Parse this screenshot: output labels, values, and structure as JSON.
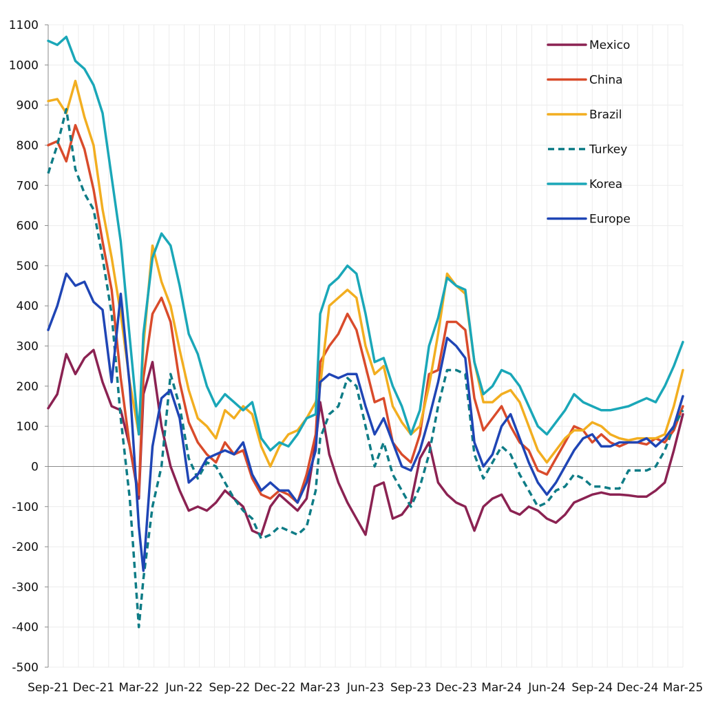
{
  "chart_data": {
    "type": "line",
    "title": "",
    "xlabel": "",
    "ylabel": "",
    "ylim": [
      -500,
      1100
    ],
    "yticks": [
      -500,
      -400,
      -300,
      -200,
      -100,
      0,
      100,
      200,
      300,
      400,
      500,
      600,
      700,
      800,
      900,
      1000,
      1100
    ],
    "ytick_labels": [
      "-500",
      "-400",
      "-300",
      "-200",
      "-100",
      "0",
      "100",
      "200",
      "300",
      "400",
      "500",
      "600",
      "700",
      "800",
      "900",
      "1000",
      "1100"
    ],
    "xtick_labels": [
      "Sep-21",
      "Dec-21",
      "Mar-22",
      "Jun-22",
      "Sep-22",
      "Dec-22",
      "Mar-23",
      "Jun-23",
      "Sep-23",
      "Dec-23",
      "Mar-24",
      "Jun-24",
      "Sep-24",
      "Dec-24",
      "Mar-25"
    ],
    "x_unit": "quarters since Sep-21",
    "xlim": [
      0,
      14
    ],
    "grid": true,
    "legend_position": "top-right",
    "series": [
      {
        "name": "Mexico",
        "color": "#8B2252",
        "dash": false,
        "x": [
          0,
          0.2,
          0.4,
          0.6,
          0.8,
          1.0,
          1.2,
          1.4,
          1.6,
          1.8,
          2.0,
          2.1,
          2.3,
          2.5,
          2.7,
          2.9,
          3.1,
          3.3,
          3.5,
          3.7,
          3.9,
          4.1,
          4.3,
          4.5,
          4.7,
          4.9,
          5.1,
          5.3,
          5.5,
          5.7,
          5.9,
          6.0,
          6.2,
          6.4,
          6.6,
          6.8,
          7.0,
          7.2,
          7.4,
          7.6,
          7.8,
          8.0,
          8.2,
          8.4,
          8.6,
          8.8,
          9.0,
          9.2,
          9.4,
          9.6,
          9.8,
          10.0,
          10.2,
          10.4,
          10.6,
          10.8,
          11.0,
          11.2,
          11.4,
          11.6,
          11.8,
          12.0,
          12.2,
          12.4,
          12.6,
          12.8,
          13.0,
          13.2,
          13.4,
          13.6,
          13.8,
          14.0
        ],
        "values": [
          145,
          180,
          280,
          230,
          270,
          290,
          210,
          150,
          140,
          50,
          -80,
          180,
          260,
          100,
          0,
          -60,
          -110,
          -100,
          -110,
          -90,
          -60,
          -80,
          -100,
          -160,
          -170,
          -100,
          -70,
          -90,
          -110,
          -80,
          60,
          160,
          30,
          -40,
          -90,
          -130,
          -170,
          -50,
          -40,
          -130,
          -120,
          -90,
          20,
          60,
          -40,
          -70,
          -90,
          -100,
          -160,
          -100,
          -80,
          -70,
          -110,
          -120,
          -100,
          -110,
          -130,
          -140,
          -120,
          -90,
          -80,
          -70,
          -65,
          -70,
          -70,
          -72,
          -75,
          -75,
          -60,
          -40,
          40,
          130
        ]
      },
      {
        "name": "China",
        "color": "#D94B2B",
        "dash": false,
        "x": [
          0,
          0.2,
          0.4,
          0.6,
          0.8,
          1.0,
          1.2,
          1.4,
          1.6,
          1.8,
          2.0,
          2.1,
          2.3,
          2.5,
          2.7,
          2.9,
          3.1,
          3.3,
          3.5,
          3.7,
          3.9,
          4.1,
          4.3,
          4.5,
          4.7,
          4.9,
          5.1,
          5.3,
          5.5,
          5.7,
          5.9,
          6.0,
          6.2,
          6.4,
          6.6,
          6.8,
          7.0,
          7.2,
          7.4,
          7.6,
          7.8,
          8.0,
          8.2,
          8.4,
          8.6,
          8.8,
          9.0,
          9.2,
          9.4,
          9.6,
          9.8,
          10.0,
          10.2,
          10.4,
          10.6,
          10.8,
          11.0,
          11.2,
          11.4,
          11.6,
          11.8,
          12.0,
          12.2,
          12.4,
          12.6,
          12.8,
          13.0,
          13.2,
          13.4,
          13.6,
          13.8,
          14.0
        ],
        "values": [
          800,
          810,
          760,
          850,
          790,
          690,
          560,
          440,
          220,
          50,
          -70,
          220,
          380,
          420,
          360,
          210,
          110,
          60,
          30,
          10,
          60,
          30,
          40,
          -30,
          -70,
          -80,
          -60,
          -70,
          -90,
          -20,
          80,
          260,
          300,
          330,
          380,
          340,
          250,
          160,
          170,
          60,
          30,
          10,
          80,
          230,
          240,
          360,
          360,
          340,
          170,
          90,
          120,
          150,
          100,
          60,
          40,
          -10,
          -20,
          20,
          60,
          100,
          90,
          60,
          80,
          60,
          50,
          60,
          60,
          55,
          70,
          60,
          90,
          150
        ]
      },
      {
        "name": "Brazil",
        "color": "#F2AE20",
        "dash": false,
        "x": [
          0,
          0.2,
          0.4,
          0.6,
          0.8,
          1.0,
          1.2,
          1.4,
          1.6,
          1.8,
          2.0,
          2.1,
          2.3,
          2.5,
          2.7,
          2.9,
          3.1,
          3.3,
          3.5,
          3.7,
          3.9,
          4.1,
          4.3,
          4.5,
          4.7,
          4.9,
          5.1,
          5.3,
          5.5,
          5.7,
          5.9,
          6.0,
          6.2,
          6.4,
          6.6,
          6.8,
          7.0,
          7.2,
          7.4,
          7.6,
          7.8,
          8.0,
          8.2,
          8.4,
          8.6,
          8.8,
          9.0,
          9.2,
          9.4,
          9.6,
          9.8,
          10.0,
          10.2,
          10.4,
          10.6,
          10.8,
          11.0,
          11.2,
          11.4,
          11.6,
          11.8,
          12.0,
          12.2,
          12.4,
          12.6,
          12.8,
          13.0,
          13.2,
          13.4,
          13.6,
          13.8,
          14.0
        ],
        "values": [
          910,
          915,
          880,
          960,
          870,
          800,
          640,
          520,
          380,
          210,
          80,
          300,
          550,
          460,
          400,
          290,
          190,
          120,
          100,
          70,
          140,
          120,
          150,
          130,
          50,
          0,
          50,
          80,
          90,
          120,
          160,
          200,
          400,
          420,
          440,
          420,
          300,
          230,
          250,
          150,
          110,
          80,
          100,
          200,
          330,
          480,
          450,
          430,
          260,
          160,
          160,
          180,
          190,
          160,
          100,
          40,
          10,
          40,
          70,
          90,
          90,
          110,
          100,
          80,
          70,
          65,
          70,
          70,
          70,
          80,
          150,
          240
        ]
      },
      {
        "name": "Turkey",
        "color": "#0E7C86",
        "dash": true,
        "x": [
          0,
          0.2,
          0.4,
          0.6,
          0.8,
          1.0,
          1.2,
          1.4,
          1.6,
          1.8,
          2.0,
          2.1,
          2.3,
          2.5,
          2.7,
          2.9,
          3.1,
          3.3,
          3.5,
          3.7,
          3.9,
          4.1,
          4.3,
          4.5,
          4.7,
          4.9,
          5.1,
          5.3,
          5.5,
          5.7,
          5.9,
          6.0,
          6.2,
          6.4,
          6.6,
          6.8,
          7.0,
          7.2,
          7.4,
          7.6,
          7.8,
          8.0,
          8.2,
          8.4,
          8.6,
          8.8,
          9.0,
          9.2,
          9.4,
          9.6,
          9.8,
          10.0,
          10.2,
          10.4,
          10.6,
          10.8,
          11.0,
          11.2,
          11.4,
          11.6,
          11.8,
          12.0,
          12.2,
          12.4,
          12.6,
          12.8,
          13.0,
          13.2,
          13.4,
          13.6,
          13.8,
          14.0
        ],
        "values": [
          730,
          800,
          890,
          740,
          680,
          640,
          520,
          380,
          120,
          -80,
          -400,
          -280,
          -100,
          0,
          230,
          150,
          20,
          -30,
          10,
          0,
          -40,
          -80,
          -110,
          -130,
          -180,
          -170,
          -150,
          -160,
          -170,
          -150,
          -60,
          70,
          130,
          150,
          220,
          200,
          100,
          0,
          60,
          -20,
          -60,
          -100,
          -50,
          30,
          150,
          240,
          240,
          230,
          30,
          -30,
          10,
          50,
          30,
          -20,
          -60,
          -100,
          -90,
          -60,
          -50,
          -20,
          -30,
          -50,
          -50,
          -55,
          -55,
          -10,
          -10,
          -10,
          0,
          40,
          100,
          140
        ]
      },
      {
        "name": "Korea",
        "color": "#1AA7B8",
        "dash": false,
        "x": [
          0,
          0.2,
          0.4,
          0.6,
          0.8,
          1.0,
          1.2,
          1.4,
          1.6,
          1.8,
          2.0,
          2.1,
          2.3,
          2.5,
          2.7,
          2.9,
          3.1,
          3.3,
          3.5,
          3.7,
          3.9,
          4.1,
          4.3,
          4.5,
          4.7,
          4.9,
          5.1,
          5.3,
          5.5,
          5.7,
          5.9,
          6.0,
          6.2,
          6.4,
          6.6,
          6.8,
          7.0,
          7.2,
          7.4,
          7.6,
          7.8,
          8.0,
          8.2,
          8.4,
          8.6,
          8.8,
          9.0,
          9.2,
          9.4,
          9.6,
          9.8,
          10.0,
          10.2,
          10.4,
          10.6,
          10.8,
          11.0,
          11.2,
          11.4,
          11.6,
          11.8,
          12.0,
          12.2,
          12.4,
          12.6,
          12.8,
          13.0,
          13.2,
          13.4,
          13.6,
          13.8,
          14.0
        ],
        "values": [
          1060,
          1050,
          1070,
          1010,
          990,
          950,
          880,
          720,
          560,
          320,
          80,
          330,
          520,
          580,
          550,
          450,
          330,
          280,
          200,
          150,
          180,
          160,
          140,
          160,
          70,
          40,
          60,
          50,
          80,
          120,
          130,
          380,
          450,
          470,
          500,
          480,
          380,
          260,
          270,
          200,
          150,
          80,
          140,
          300,
          370,
          470,
          450,
          440,
          260,
          180,
          200,
          240,
          230,
          200,
          150,
          100,
          80,
          110,
          140,
          180,
          160,
          150,
          140,
          140,
          145,
          150,
          160,
          170,
          160,
          200,
          250,
          310
        ]
      },
      {
        "name": "Europe",
        "color": "#1F45B5",
        "dash": false,
        "x": [
          0,
          0.2,
          0.4,
          0.6,
          0.8,
          1.0,
          1.2,
          1.4,
          1.6,
          1.8,
          2.0,
          2.1,
          2.3,
          2.5,
          2.7,
          2.9,
          3.1,
          3.3,
          3.5,
          3.7,
          3.9,
          4.1,
          4.3,
          4.5,
          4.7,
          4.9,
          5.1,
          5.3,
          5.5,
          5.7,
          5.9,
          6.0,
          6.2,
          6.4,
          6.6,
          6.8,
          7.0,
          7.2,
          7.4,
          7.6,
          7.8,
          8.0,
          8.2,
          8.4,
          8.6,
          8.8,
          9.0,
          9.2,
          9.4,
          9.6,
          9.8,
          10.0,
          10.2,
          10.4,
          10.6,
          10.8,
          11.0,
          11.2,
          11.4,
          11.6,
          11.8,
          12.0,
          12.2,
          12.4,
          12.6,
          12.8,
          13.0,
          13.2,
          13.4,
          13.6,
          13.8,
          14.0
        ],
        "values": [
          340,
          400,
          480,
          450,
          460,
          410,
          390,
          210,
          430,
          200,
          -150,
          -260,
          50,
          170,
          190,
          120,
          -40,
          -20,
          20,
          30,
          40,
          30,
          60,
          -20,
          -60,
          -40,
          -60,
          -60,
          -90,
          -40,
          40,
          210,
          230,
          220,
          230,
          230,
          150,
          80,
          120,
          60,
          0,
          -10,
          40,
          120,
          210,
          320,
          300,
          270,
          60,
          0,
          30,
          100,
          130,
          70,
          10,
          -40,
          -70,
          -40,
          0,
          40,
          70,
          80,
          50,
          50,
          60,
          60,
          60,
          70,
          50,
          70,
          100,
          175
        ]
      }
    ]
  }
}
